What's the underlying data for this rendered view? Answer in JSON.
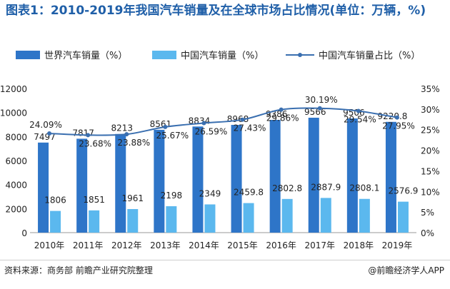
{
  "chart_data": {
    "type": "bar",
    "title": "图表1：2010-2019年我国汽车销量及在全球市场占比情况(单位：万辆，%)",
    "categories": [
      "2010年",
      "2011年",
      "2012年",
      "2013年",
      "2014年",
      "2015年",
      "2016年",
      "2017年",
      "2018年",
      "2019年"
    ],
    "series": [
      {
        "name": "世界汽车销量（%）",
        "type": "bar",
        "axis": "left",
        "color": "#2e75c8",
        "values": [
          7497,
          7817,
          8213,
          8561,
          8834,
          8968,
          9386,
          9566,
          9506,
          9220.8
        ]
      },
      {
        "name": "中国汽车销量（%）",
        "type": "bar",
        "axis": "left",
        "color": "#5bb8ee",
        "values": [
          1806,
          1851,
          1961,
          2198,
          2349,
          2459.8,
          2802.8,
          2887.9,
          2808.1,
          2576.9
        ]
      },
      {
        "name": "中国汽车销量占比（%）",
        "type": "line",
        "axis": "right",
        "color": "#3a6fb0",
        "values": [
          24.09,
          23.68,
          23.88,
          25.67,
          26.59,
          27.43,
          29.86,
          30.19,
          29.54,
          27.95
        ]
      }
    ],
    "left_axis": {
      "min": 0,
      "max": 12000,
      "step": 2000,
      "ticks": [
        "0",
        "2000",
        "4000",
        "6000",
        "8000",
        "10000",
        "12000"
      ]
    },
    "right_axis": {
      "min": 0,
      "max": 35,
      "step": 5,
      "ticks": [
        "0%",
        "5%",
        "10%",
        "15%",
        "20%",
        "25%",
        "30%",
        "35%"
      ]
    },
    "bar_labels": {
      "world": [
        "7497",
        "7817",
        "8213",
        "8561",
        "8834",
        "8968",
        "9386",
        "9566",
        "9506",
        "9220.8"
      ],
      "china": [
        "1806",
        "1851",
        "1961",
        "2198",
        "2349",
        "2459.8",
        "2802.8",
        "2887.9",
        "2808.1",
        "2576.9"
      ],
      "share": [
        "24.09%",
        "23.68%",
        "23.88%",
        "25.67%",
        "26.59%",
        "27.43%",
        "29.86%",
        "30.19%",
        "29.54%",
        "27.95%"
      ]
    },
    "legend_position": "top",
    "grid": false
  },
  "footer": {
    "source": "资料来源：商务部 前瞻产业研究院整理",
    "brand": "@前瞻经济学人APP"
  }
}
